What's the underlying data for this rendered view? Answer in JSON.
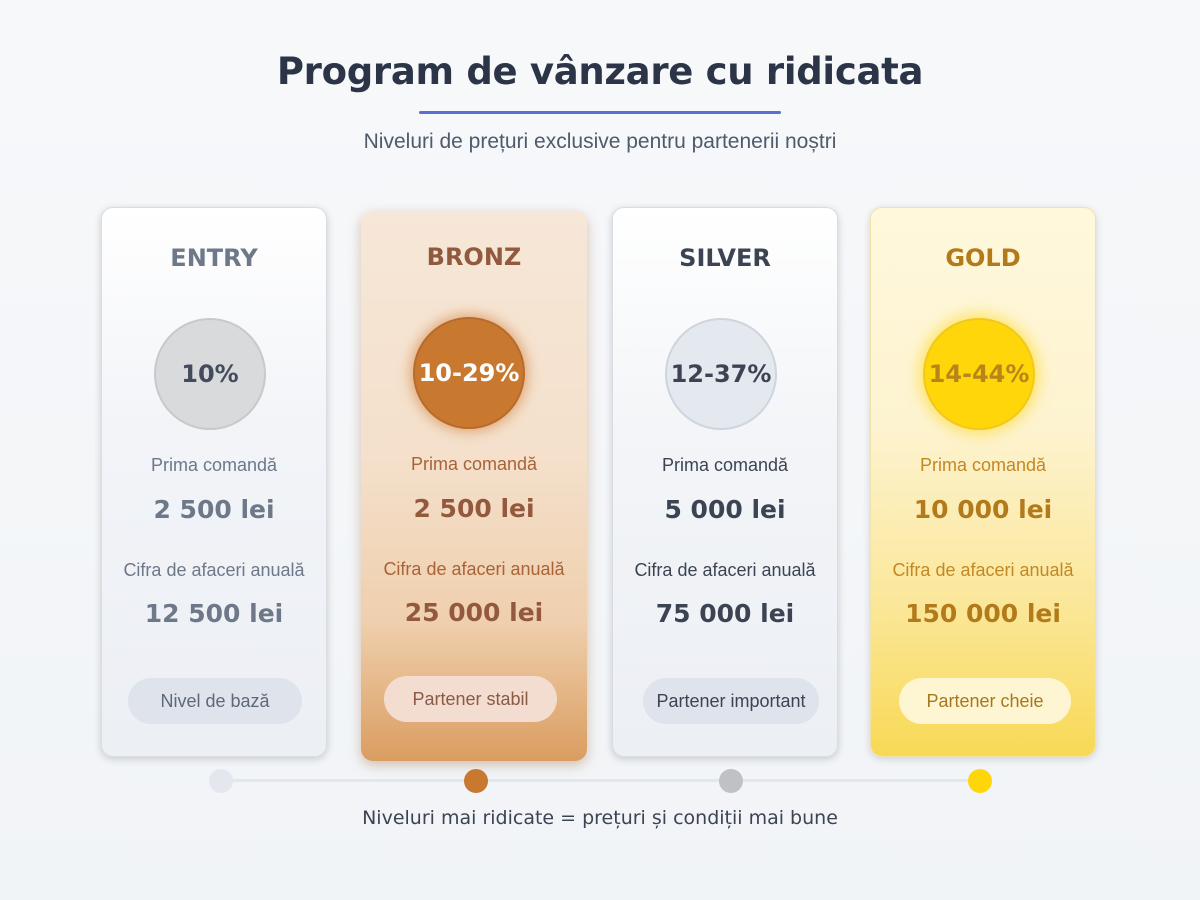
{
  "header": {
    "title": "Program de vânzare cu ridicata",
    "subtitle": "Niveluri de prețuri exclusive pentru partenerii noștri"
  },
  "tiers": [
    {
      "name": "ENTRY",
      "discount": "10%",
      "first_order_label": "Prima comandă",
      "first_order_value": "2 500 lei",
      "annual_label": "Cifra de afaceri anuală",
      "annual_value": "12 500 lei",
      "badge": "Nivel de bază",
      "color": "#d9dadc"
    },
    {
      "name": "BRONZ",
      "discount": "10-29%",
      "first_order_label": "Prima comandă",
      "first_order_value": "2 500 lei",
      "annual_label": "Cifra de afaceri anuală",
      "annual_value": "25 000 lei",
      "badge": "Partener stabil",
      "color": "#c9782f"
    },
    {
      "name": "SILVER",
      "discount": "12-37%",
      "first_order_label": "Prima comandă",
      "first_order_value": "5 000 lei",
      "annual_label": "Cifra de afaceri anuală",
      "annual_value": "75 000 lei",
      "badge": "Partener important",
      "color": "#e4e8ef"
    },
    {
      "name": "GOLD",
      "discount": "14-44%",
      "first_order_label": "Prima comandă",
      "first_order_value": "10 000 lei",
      "annual_label": "Cifra de afaceri anuală",
      "annual_value": "150 000 lei",
      "badge": "Partener cheie",
      "color": "#ffd60a"
    }
  ],
  "footer": {
    "note": "Niveluri mai ridicate = prețuri și condiții mai bune"
  },
  "colors": {
    "accent": "#5b6ed1",
    "text_dark": "#2c3447"
  }
}
